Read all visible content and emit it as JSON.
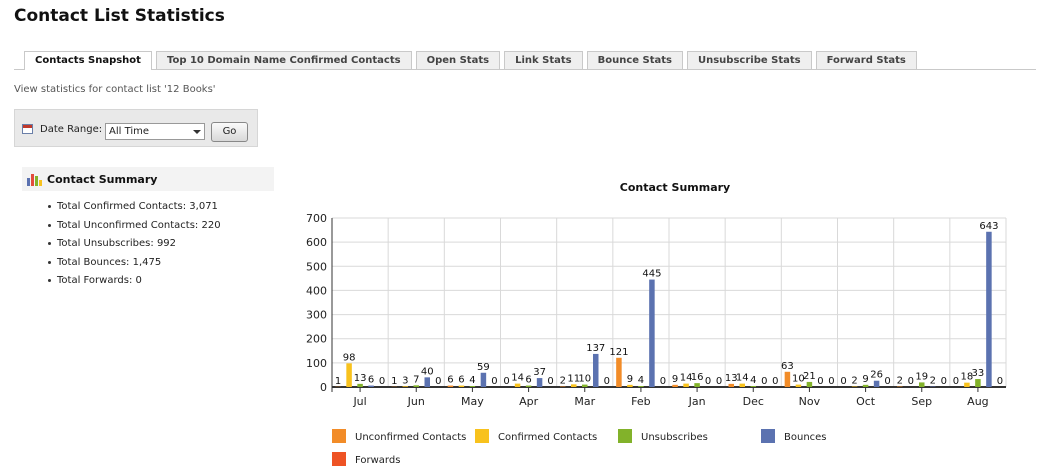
{
  "page": {
    "title": "Contact List Statistics",
    "subtitle": "View statistics for contact list '12 Books'"
  },
  "tabs": [
    {
      "label": "Contacts Snapshot",
      "active": true
    },
    {
      "label": "Top 10 Domain Name Confirmed Contacts",
      "active": false
    },
    {
      "label": "Open Stats",
      "active": false
    },
    {
      "label": "Link Stats",
      "active": false
    },
    {
      "label": "Bounce Stats",
      "active": false
    },
    {
      "label": "Unsubscribe Stats",
      "active": false
    },
    {
      "label": "Forward Stats",
      "active": false
    }
  ],
  "date_range": {
    "label": "Date Range:",
    "value": "All Time",
    "go_label": "Go"
  },
  "summary": {
    "title": "Contact Summary",
    "items": [
      "Total Confirmed Contacts: 3,071",
      "Total Unconfirmed Contacts: 220",
      "Total Unsubscribes: 992",
      "Total Bounces: 1,475",
      "Total Forwards: 0"
    ]
  },
  "colors": {
    "unconfirmed": "#f28c28",
    "confirmed": "#f8c21d",
    "unsubscribes": "#82b22a",
    "bounces": "#5b72b0",
    "forwards": "#ee5324"
  },
  "chart_data": {
    "type": "bar",
    "title": "Contact Summary",
    "categories": [
      "Jul",
      "Jun",
      "May",
      "Apr",
      "Mar",
      "Feb",
      "Jan",
      "Dec",
      "Nov",
      "Oct",
      "Sep",
      "Aug"
    ],
    "ylim": [
      0,
      700
    ],
    "yticks": [
      0,
      100,
      200,
      300,
      400,
      500,
      600,
      700
    ],
    "grid": true,
    "legend_position": "bottom",
    "series": [
      {
        "name": "Unconfirmed Contacts",
        "color_key": "unconfirmed",
        "values": [
          1,
          1,
          6,
          0,
          2,
          121,
          9,
          13,
          63,
          0,
          2,
          0
        ]
      },
      {
        "name": "Confirmed Contacts",
        "color_key": "confirmed",
        "values": [
          98,
          3,
          6,
          14,
          11,
          9,
          14,
          14,
          10,
          2,
          0,
          18
        ]
      },
      {
        "name": "Unsubscribes",
        "color_key": "unsubscribes",
        "values": [
          13,
          7,
          4,
          6,
          10,
          4,
          16,
          4,
          21,
          9,
          19,
          33
        ]
      },
      {
        "name": "Bounces",
        "color_key": "bounces",
        "values": [
          6,
          40,
          59,
          37,
          137,
          445,
          0,
          0,
          0,
          26,
          2,
          643
        ]
      },
      {
        "name": "Forwards",
        "color_key": "forwards",
        "values": [
          0,
          0,
          0,
          0,
          0,
          0,
          0,
          0,
          0,
          0,
          0,
          0
        ]
      }
    ]
  }
}
